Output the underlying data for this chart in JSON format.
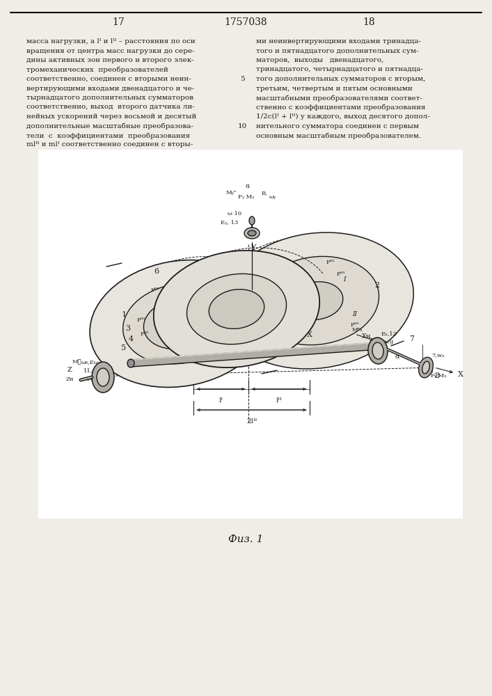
{
  "bg_color": "#f0ede6",
  "text_color": "#1a1a1a",
  "line_color": "#1a1a1a",
  "page_left": "17",
  "page_center": "1757038",
  "page_right": "18",
  "left_text": [
    "масса нагрузки, а lᴵ и lᴵᴵ – расстояния по оси",
    "вращения от центра масс нагрузки до сере-",
    "дины активных зон первого и второго элек-",
    "тромеханических  преобразователей",
    "соответственно, соединен с вторыми неин-",
    "вертирующими входами двенадцатого и че-",
    "тырнадцатого дополнительных сумматоров",
    "соответственно, выход  второго датчика ли-",
    "нейных ускорений через восьмой и десятый",
    "дополнительные масштабные преобразова-",
    "тели  с  коэффициентами  преобразования",
    "mlᴵᴵ и mlᴵ соответственно соединен с вторы-"
  ],
  "right_text": [
    "ми неинвертирующими входами тринадца-",
    "того и пятнадцатого дополнительных сум-",
    "маторов,  выходы   двенадцатого,",
    "тринадцатого, четырнадцатого и пятнадца-",
    "того дополнительных сумматоров с вторым,",
    "третьим, четвертым и пятым основными",
    "масштабными преобразователями соответ-",
    "ственно с коэффициентами преобразования",
    "1/2c(lᴵ + lᴵᴵ) у каждого, выход десятого допол-",
    "нительного сумматора соединен с первым",
    "основным масштабным преобразователем."
  ],
  "fig_label": "Фuз. 1"
}
